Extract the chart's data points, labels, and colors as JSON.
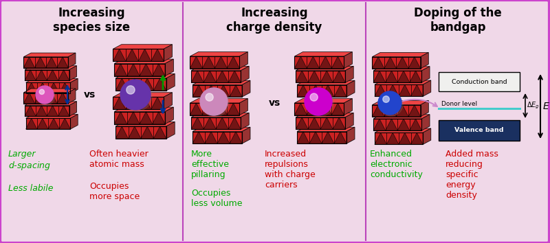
{
  "bg_color": "#f0d8e8",
  "border_color": "#cc44cc",
  "divider_color": "#bb44bb",
  "panel_titles": [
    "Increasing\nspecies size",
    "Increasing\ncharge density",
    "Doping of the\nbandgap"
  ],
  "title_color": "#000000",
  "green_color": "#00aa00",
  "red_color": "#cc0000",
  "panel1_green_texts": [
    "Larger\nd-spacing\n\nLess labile"
  ],
  "panel1_red_texts_1": "Often heavier\natomic mass",
  "panel1_red_texts_2": "Occupies\nmore space",
  "panel2_green_texts_1": "More\neffective\npillaring",
  "panel2_green_texts_2": "Occupies\nless volume",
  "panel2_red_texts_1": "Increased\nrepulsions\nwith charge\ncarriers",
  "panel3_green_texts_1": "Enhanced\nelectronic\nconductivity",
  "panel3_red_texts_1": "Added mass\nreducing\nspecific\nenergy\ndensity",
  "valence_band_color": "#1a3060",
  "conduction_band_color": "#f0f0ee",
  "donor_level_color": "#44cccc",
  "donor_arrow_color": "#cc88cc",
  "sphere_small_pink": "#dd55bb",
  "sphere_large_purple": "#6633aa",
  "sphere_light_pink": "#cc88bb",
  "sphere_magenta": "#cc00cc",
  "sphere_blue": "#2244cc",
  "p1_divx": 266,
  "p2_divx": 532,
  "figw": 8.0,
  "figh": 3.54,
  "dpi": 100
}
